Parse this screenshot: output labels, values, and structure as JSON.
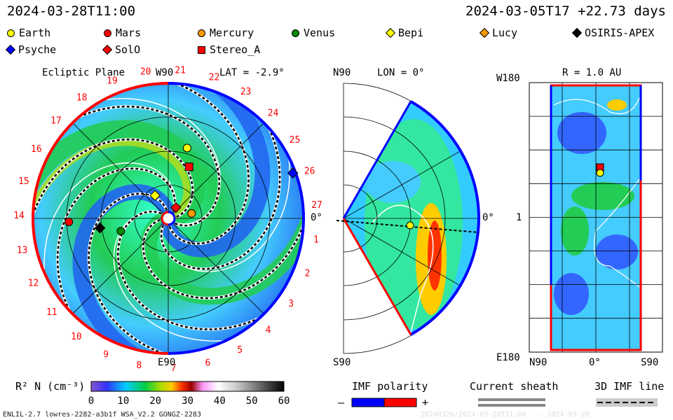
{
  "header": {
    "left_time": "2024-03-28T11:00",
    "right_time": "2024-03-05T17 +22.73 days"
  },
  "legend": [
    {
      "name": "Earth",
      "color": "#ffff00",
      "shape": "circle"
    },
    {
      "name": "Mars",
      "color": "#ff0000",
      "shape": "circle"
    },
    {
      "name": "Mercury",
      "color": "#ff9900",
      "shape": "circle"
    },
    {
      "name": "Venus",
      "color": "#008800",
      "shape": "circle"
    },
    {
      "name": "Bepi",
      "color": "#ffff00",
      "shape": "diamond"
    },
    {
      "name": "Lucy",
      "color": "#ff9900",
      "shape": "diamond"
    },
    {
      "name": "OSIRIS-APEX",
      "color": "#000000",
      "shape": "diamond"
    },
    {
      "name": "Psyche",
      "color": "#0000ff",
      "shape": "diamond"
    },
    {
      "name": "SolO",
      "color": "#ff0000",
      "shape": "diamond"
    },
    {
      "name": "Stereo_A",
      "color": "#ff0000",
      "shape": "square"
    }
  ],
  "panels": {
    "ecliptic": {
      "title": "Ecliptic Plane",
      "top_label": "W90",
      "lat_label": "LAT = -2.9°",
      "right_label": "0°",
      "bottom_label": "E90"
    },
    "meridional": {
      "top_label": "N90",
      "lon_label": "LON = 0°",
      "right_label": "0°",
      "bottom_label": "S90"
    },
    "radial": {
      "top_left": "W180",
      "r_label": "R = 1.0 AU",
      "mid_left": "1",
      "bottom_left": "E180",
      "x_labels": [
        "N90",
        "0°",
        "S90"
      ]
    }
  },
  "chart_data": {
    "type": "heatmap",
    "colorbar": {
      "label": "R² N (cm⁻³)",
      "ticks": [
        "0",
        "10",
        "20",
        "30",
        "40",
        "50",
        "60"
      ],
      "range": [
        0,
        60
      ]
    },
    "carrington_numbers": [
      "1",
      "2",
      "3",
      "4",
      "5",
      "6",
      "7",
      "8",
      "9",
      "10",
      "11",
      "12",
      "13",
      "14",
      "15",
      "16",
      "17",
      "18",
      "19",
      "20",
      "21",
      "22",
      "23",
      "24",
      "25",
      "26",
      "27"
    ],
    "ecliptic_bodies": [
      {
        "name": "Earth",
        "angle_deg": 75,
        "r_au": 0.55
      },
      {
        "name": "Stereo_A",
        "angle_deg": 68,
        "r_au": 0.42
      },
      {
        "name": "Mercury",
        "angle_deg": 12,
        "r_au": 0.18
      },
      {
        "name": "SolO",
        "angle_deg": 55,
        "r_au": 0.1
      },
      {
        "name": "Bepi",
        "angle_deg": 120,
        "r_au": 0.2
      },
      {
        "name": "Psyche",
        "angle_deg": 20,
        "r_au": 1.0
      },
      {
        "name": "Mars",
        "angle_deg": 182,
        "r_au": 0.75
      },
      {
        "name": "OSIRIS-APEX",
        "angle_deg": 188,
        "r_au": 0.52
      },
      {
        "name": "Venus",
        "angle_deg": 195,
        "r_au": 0.37
      }
    ]
  },
  "footer": {
    "imf_label": "IMF polarity",
    "minus": "–",
    "plus": "+",
    "sheath_label": "Current sheath",
    "imf_line_label": "3D IMF line",
    "model_info": "ENLIL-2.7 lowres-2282-a3b1f WSA_V2.2 GONGZ-2283",
    "run_info": "20240326/2024-03-28T11:00 ...  2024-03-28"
  },
  "colors": {
    "outward": "#0000ff",
    "inward": "#ff0000"
  }
}
